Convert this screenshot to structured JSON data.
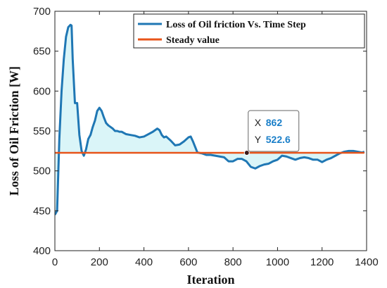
{
  "chart_data": {
    "type": "line",
    "title": "",
    "xlabel": "Iteration",
    "ylabel": "Loss of Oil Friction [W]",
    "xlim": [
      0,
      1400
    ],
    "ylim": [
      400,
      700
    ],
    "xticks": [
      "0",
      "200",
      "400",
      "600",
      "800",
      "1000",
      "1200",
      "1400"
    ],
    "yticks": [
      "400",
      "450",
      "500",
      "550",
      "600",
      "650",
      "700"
    ],
    "grid": false,
    "legend_position": "top-right",
    "series": [
      {
        "name": "Loss of Oil friction Vs. Time Step",
        "color": "#1f77b4",
        "x": [
          0,
          10,
          20,
          30,
          40,
          50,
          60,
          70,
          75,
          80,
          90,
          100,
          110,
          120,
          130,
          140,
          150,
          160,
          170,
          180,
          190,
          200,
          210,
          220,
          230,
          240,
          250,
          260,
          270,
          280,
          290,
          300,
          320,
          340,
          360,
          380,
          400,
          420,
          440,
          460,
          470,
          480,
          490,
          500,
          520,
          540,
          560,
          580,
          600,
          610,
          620,
          640,
          660,
          680,
          700,
          720,
          740,
          760,
          780,
          800,
          820,
          840,
          860,
          880,
          900,
          920,
          940,
          960,
          980,
          1000,
          1020,
          1040,
          1060,
          1080,
          1100,
          1120,
          1140,
          1160,
          1180,
          1200,
          1220,
          1240,
          1260,
          1280,
          1300,
          1320,
          1340,
          1360,
          1380,
          1390
        ],
        "y": [
          445,
          450,
          540,
          600,
          640,
          668,
          680,
          683,
          682,
          640,
          585,
          585,
          545,
          525,
          519,
          527,
          540,
          545,
          555,
          563,
          575,
          579,
          575,
          567,
          560,
          557,
          555,
          553,
          550,
          550,
          549,
          549,
          546,
          545,
          544,
          542,
          543,
          546,
          549,
          553,
          551,
          545,
          542,
          543,
          538,
          532,
          533,
          537,
          542,
          543,
          537,
          523,
          522,
          520,
          520,
          519,
          518,
          517,
          512,
          512,
          515,
          515,
          512,
          505,
          503,
          506,
          508,
          509,
          512,
          514,
          519,
          518,
          516,
          514,
          516,
          517,
          516,
          514,
          514,
          511,
          514,
          516,
          519,
          522,
          524,
          525,
          525,
          524,
          523,
          524
        ]
      },
      {
        "name": "Steady value",
        "color": "#e8541a",
        "x": [
          0,
          1390
        ],
        "y": [
          522.6,
          522.6
        ]
      }
    ],
    "annotations": [
      {
        "x_label": "X",
        "y_label": "Y",
        "x_value": "862",
        "y_value": "522.6",
        "point": [
          862,
          522.6
        ]
      }
    ]
  }
}
